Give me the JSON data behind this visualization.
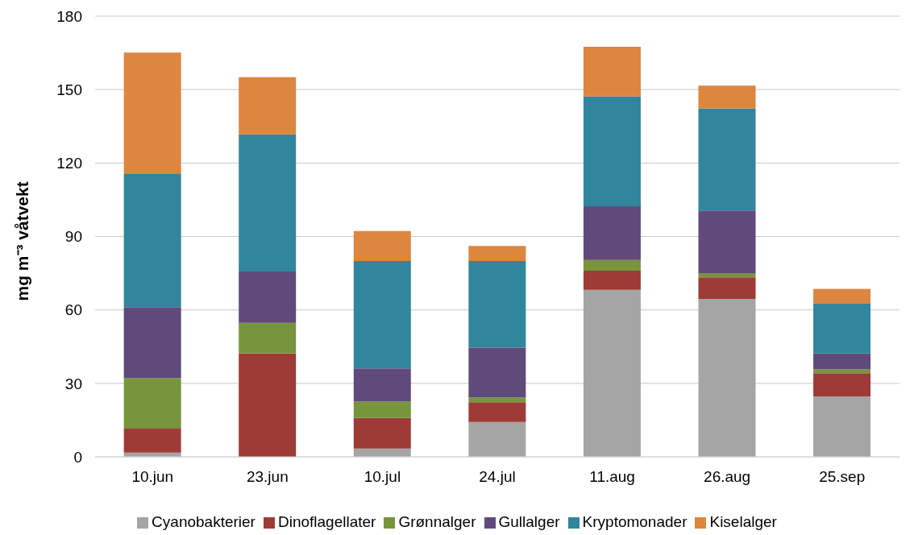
{
  "chart_data": {
    "type": "bar",
    "stacked": true,
    "ylabel": "mg m⁻³ våtvekt",
    "categories": [
      "10.jun",
      "23.jun",
      "10.jul",
      "24.jul",
      "11.aug",
      "26.aug",
      "25.sep"
    ],
    "series": [
      {
        "name": "Cyanobakterier",
        "color": "#a5a5a5",
        "values": [
          1.7,
          null,
          3.4,
          14.2,
          68.2,
          64.5,
          24.7
        ]
      },
      {
        "name": "Dinoflagellater",
        "color": "#9e3b37",
        "values": [
          9.8,
          42.3,
          12.5,
          8.1,
          7.8,
          8.8,
          9.4
        ]
      },
      {
        "name": "Grønnalger",
        "color": "#77953c",
        "values": [
          20.6,
          12.4,
          6.7,
          2,
          4.4,
          1.7,
          1.7
        ]
      },
      {
        "name": "Gullalger",
        "color": "#604a7b",
        "values": [
          29,
          21,
          13.5,
          20.3,
          21.9,
          25.6,
          6.4
        ]
      },
      {
        "name": "Kryptomonader",
        "color": "#31859c",
        "values": [
          54.4,
          56,
          43.9,
          35.4,
          44.9,
          41.6,
          20.3
        ]
      },
      {
        "name": "Kiselalger",
        "color": "#dd8640",
        "values": [
          49.6,
          23.4,
          12.2,
          6.1,
          20.3,
          9.4,
          6.1
        ]
      }
    ],
    "ylim": [
      0,
      180
    ],
    "yticks": [
      0,
      30,
      60,
      90,
      120,
      150,
      180
    ],
    "grid": "y",
    "legend": "bottom"
  }
}
